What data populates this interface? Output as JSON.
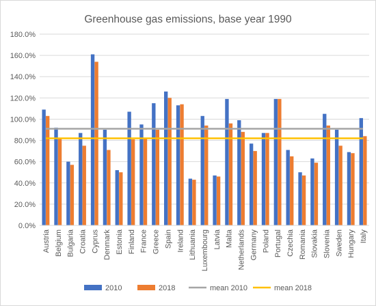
{
  "chart_data": {
    "type": "bar",
    "title": "Greenhouse gas emissions, base year 1990",
    "categories": [
      "Austria",
      "Belgium",
      "Bulgaria",
      "Croatia",
      "Cyprus",
      "Denmark",
      "Estonia",
      "Finland",
      "France",
      "Greece",
      "Spain",
      "Ireland",
      "Lithuania",
      "Luxembourg",
      "Latvia",
      "Malta",
      "Netherlands",
      "Germany",
      "Poland",
      "Portugal",
      "Czechia",
      "Romania",
      "Slovakia",
      "Slovenia",
      "Sweden",
      "Hungary",
      "Italy"
    ],
    "series": [
      {
        "name": "2010",
        "color": "#4472c4",
        "values": [
          109,
          92,
          60,
          87,
          161,
          90,
          52,
          107,
          95,
          115,
          126,
          113,
          44,
          103,
          47,
          119,
          99,
          77,
          87,
          119,
          71,
          50,
          63,
          105,
          90,
          69,
          101
        ]
      },
      {
        "name": "2018",
        "color": "#ed7d31",
        "values": [
          103,
          82,
          57,
          75,
          154,
          71,
          50,
          81,
          82,
          90,
          120,
          114,
          43,
          94,
          46,
          96,
          88,
          70,
          87,
          119,
          65,
          47,
          59,
          94,
          75,
          68,
          84
        ]
      }
    ],
    "lines": [
      {
        "name": "mean 2010",
        "color": "#a5a5a5",
        "value": 91
      },
      {
        "name": "mean 2018",
        "color": "#ffc000",
        "value": 82
      }
    ],
    "ylim": [
      0,
      180
    ],
    "yticks": [
      "0.0%",
      "20.0%",
      "40.0%",
      "60.0%",
      "80.0%",
      "100.0%",
      "120.0%",
      "140.0%",
      "160.0%",
      "180.0%"
    ],
    "ytick_values": [
      0,
      20,
      40,
      60,
      80,
      100,
      120,
      140,
      160,
      180
    ],
    "grid": true,
    "legend_position": "bottom",
    "xlabel": "",
    "ylabel": ""
  }
}
